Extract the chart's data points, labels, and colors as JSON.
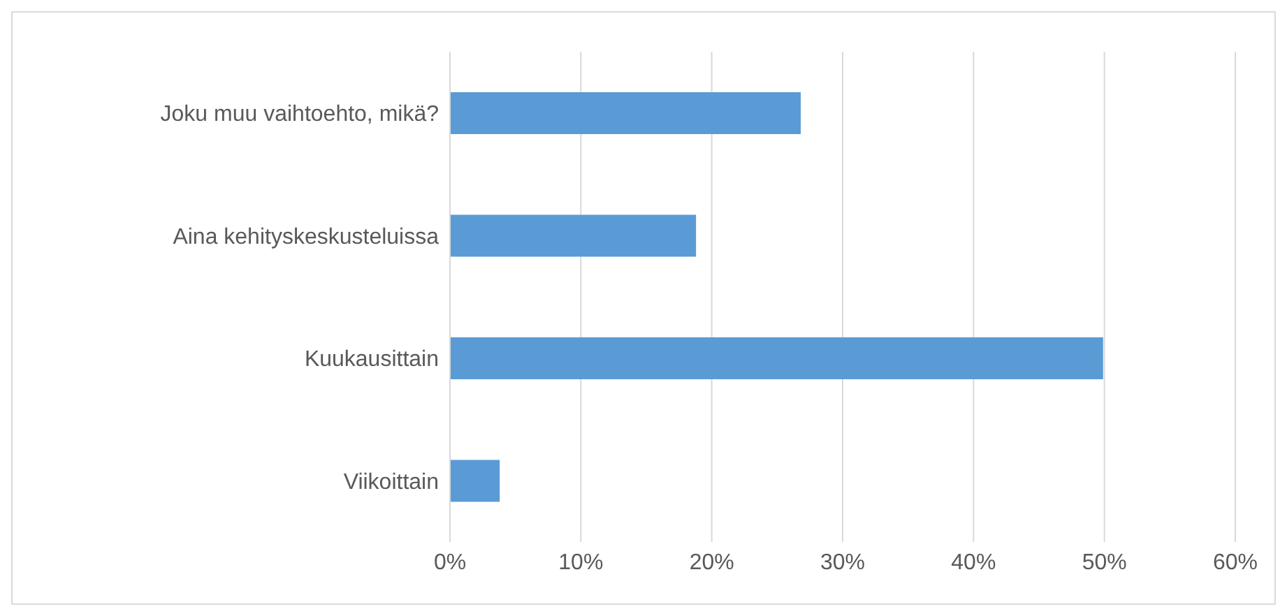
{
  "chart_data": {
    "type": "bar",
    "orientation": "horizontal",
    "categories": [
      "Joku muu vaihtoehto, mikä?",
      "Aina kehityskeskusteluissa",
      "Kuukausittain",
      "Viikoittain"
    ],
    "values": [
      26.8,
      18.8,
      49.9,
      3.8
    ],
    "color": "#5b9bd5",
    "xlim": [
      0,
      60
    ],
    "xticks": [
      {
        "value": 0,
        "label": "0%"
      },
      {
        "value": 10,
        "label": "10%"
      },
      {
        "value": 20,
        "label": "20%"
      },
      {
        "value": 30,
        "label": "30%"
      },
      {
        "value": 40,
        "label": "40%"
      },
      {
        "value": 50,
        "label": "50%"
      },
      {
        "value": 60,
        "label": "60%"
      }
    ],
    "grid": "x"
  }
}
